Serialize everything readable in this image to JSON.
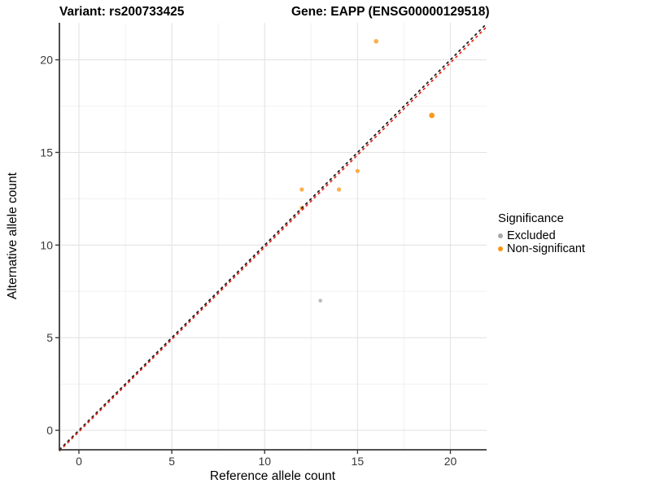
{
  "header": {
    "variant_title": "Variant: rs200733425",
    "gene_title": "Gene: EAPP (ENSG00000129518)"
  },
  "legend": {
    "title": "Significance",
    "items": [
      {
        "label": "Excluded",
        "color": "#A9A9A9"
      },
      {
        "label": "Non-significant",
        "color": "#FB9410"
      }
    ]
  },
  "chart_data": {
    "type": "scatter",
    "title_left": "Variant: rs200733425",
    "title_right": "Gene: EAPP (ENSG00000129518)",
    "xlabel": "Reference allele count",
    "ylabel": "Alternative allele count",
    "xlim": [
      -1.05,
      21.95
    ],
    "ylim": [
      -1.05,
      22.0
    ],
    "xticks": [
      0,
      5,
      10,
      15,
      20
    ],
    "yticks": [
      0,
      5,
      10,
      15,
      20
    ],
    "xminor": [
      2.5,
      7.5,
      12.5,
      17.5
    ],
    "yminor": [
      2.5,
      7.5,
      12.5,
      17.5
    ],
    "grid": true,
    "legend_position": "right",
    "legend_title": "Significance",
    "series": [
      {
        "name": "Non-significant",
        "color": "#FB9410",
        "opacity": 0.75,
        "points": [
          {
            "x": 12,
            "y": 12,
            "r": 2.6
          },
          {
            "x": 12,
            "y": 13,
            "r": 2.6
          },
          {
            "x": 14,
            "y": 13,
            "r": 2.6
          },
          {
            "x": 15,
            "y": 14,
            "r": 2.6
          },
          {
            "x": 16,
            "y": 21,
            "r": 2.8
          },
          {
            "x": 19,
            "y": 17,
            "r": 3.4,
            "opacity": 0.95
          }
        ]
      },
      {
        "name": "Excluded",
        "color": "#A9A9A9",
        "opacity": 0.8,
        "points": [
          {
            "x": 13,
            "y": 7,
            "r": 2.3
          }
        ]
      }
    ],
    "reference_lines": [
      {
        "name": "identity-line",
        "color": "#161616",
        "x1": -1.05,
        "y1": -1.05,
        "x2": 21.95,
        "y2": 21.95,
        "dash": "3.5 3.5",
        "width": 1.7
      },
      {
        "name": "fit-line",
        "color": "#E1271B",
        "x1": -1.05,
        "y1": -1.12,
        "x2": 21.95,
        "y2": 21.78,
        "dash": "3.5 3.5",
        "width": 1.7
      }
    ]
  },
  "style": {
    "background": "#FFFFFF",
    "grid_major_color": "#E3E3E3",
    "grid_minor_color": "#F1F1F1",
    "axis_line_color": "#3A3A3A",
    "tick_label_color": "#383838"
  }
}
